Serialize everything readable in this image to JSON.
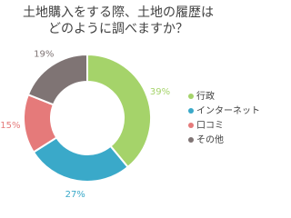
{
  "chart_data": {
    "type": "pie",
    "title": [
      "土地購入をする際、土地の履歴は",
      "どのように調べますか？"
    ],
    "categories": [
      "行政",
      "インターネット",
      "口コミ",
      "その他"
    ],
    "values": [
      39,
      27,
      15,
      19
    ],
    "value_labels": [
      "39%",
      "27%",
      "15%",
      "19%"
    ],
    "colors": [
      "#a5d36a",
      "#3aa9c9",
      "#e57a7a",
      "#7f7474"
    ],
    "donut": true
  }
}
